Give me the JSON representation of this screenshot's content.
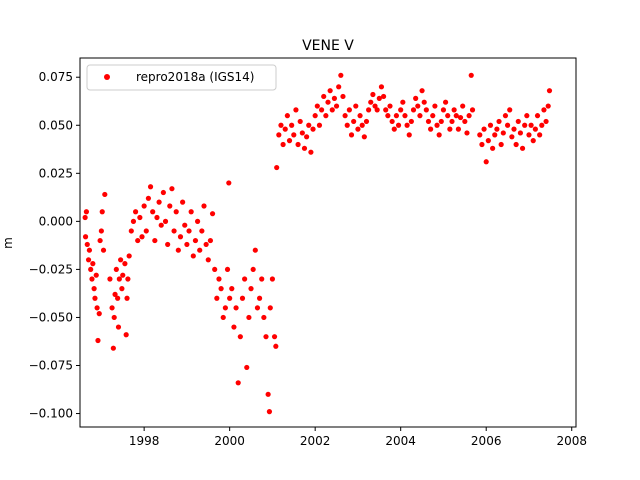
{
  "chart_data": {
    "type": "scatter",
    "title": "VENE V",
    "xlabel": "",
    "ylabel": "m",
    "xlim": [
      1996.5,
      2008.1
    ],
    "ylim": [
      -0.107,
      0.085
    ],
    "xticks": [
      1998,
      2000,
      2002,
      2004,
      2006,
      2008
    ],
    "xtick_labels": [
      "1998",
      "2000",
      "2002",
      "2004",
      "2006",
      "2008"
    ],
    "yticks": [
      -0.1,
      -0.075,
      -0.05,
      -0.025,
      0.0,
      0.025,
      0.05,
      0.075
    ],
    "ytick_labels": [
      "−0.100",
      "−0.075",
      "−0.050",
      "−0.025",
      "0.000",
      "0.025",
      "0.050",
      "0.075"
    ],
    "grid": false,
    "legend_position": "top-left",
    "series": [
      {
        "name": "repro2018a (IGS14)",
        "color": "#ff0000",
        "marker": "circle",
        "points": [
          [
            1996.62,
            0.002
          ],
          [
            1996.63,
            -0.008
          ],
          [
            1996.65,
            0.005
          ],
          [
            1996.67,
            -0.012
          ],
          [
            1996.7,
            -0.02
          ],
          [
            1996.72,
            -0.015
          ],
          [
            1996.75,
            -0.025
          ],
          [
            1996.78,
            -0.03
          ],
          [
            1996.8,
            -0.022
          ],
          [
            1996.83,
            -0.035
          ],
          [
            1996.85,
            -0.04
          ],
          [
            1996.88,
            -0.028
          ],
          [
            1996.9,
            -0.045
          ],
          [
            1996.92,
            -0.062
          ],
          [
            1996.95,
            -0.048
          ],
          [
            1996.97,
            -0.01
          ],
          [
            1997.0,
            -0.005
          ],
          [
            1997.02,
            0.005
          ],
          [
            1997.05,
            -0.015
          ],
          [
            1997.08,
            0.014
          ],
          [
            1997.2,
            -0.03
          ],
          [
            1997.25,
            -0.045
          ],
          [
            1997.28,
            -0.066
          ],
          [
            1997.3,
            -0.05
          ],
          [
            1997.32,
            -0.038
          ],
          [
            1997.35,
            -0.025
          ],
          [
            1997.38,
            -0.04
          ],
          [
            1997.4,
            -0.055
          ],
          [
            1997.42,
            -0.03
          ],
          [
            1997.45,
            -0.02
          ],
          [
            1997.48,
            -0.035
          ],
          [
            1997.5,
            -0.028
          ],
          [
            1997.55,
            -0.022
          ],
          [
            1997.58,
            -0.059
          ],
          [
            1997.6,
            -0.04
          ],
          [
            1997.62,
            -0.03
          ],
          [
            1997.65,
            -0.018
          ],
          [
            1997.7,
            -0.005
          ],
          [
            1997.75,
            0.0
          ],
          [
            1997.8,
            0.005
          ],
          [
            1997.85,
            -0.01
          ],
          [
            1997.9,
            0.002
          ],
          [
            1997.95,
            -0.008
          ],
          [
            1998.0,
            0.008
          ],
          [
            1998.05,
            -0.005
          ],
          [
            1998.1,
            0.012
          ],
          [
            1998.15,
            0.018
          ],
          [
            1998.2,
            0.005
          ],
          [
            1998.25,
            -0.01
          ],
          [
            1998.3,
            0.002
          ],
          [
            1998.35,
            0.01
          ],
          [
            1998.4,
            -0.002
          ],
          [
            1998.45,
            0.015
          ],
          [
            1998.5,
            0.0
          ],
          [
            1998.55,
            -0.012
          ],
          [
            1998.6,
            0.008
          ],
          [
            1998.65,
            0.017
          ],
          [
            1998.7,
            -0.005
          ],
          [
            1998.75,
            0.005
          ],
          [
            1998.8,
            -0.015
          ],
          [
            1998.85,
            -0.008
          ],
          [
            1998.9,
            0.01
          ],
          [
            1998.95,
            -0.002
          ],
          [
            1999.0,
            -0.012
          ],
          [
            1999.05,
            -0.005
          ],
          [
            1999.1,
            0.005
          ],
          [
            1999.15,
            -0.018
          ],
          [
            1999.2,
            -0.01
          ],
          [
            1999.25,
            0.0
          ],
          [
            1999.3,
            -0.015
          ],
          [
            1999.35,
            -0.005
          ],
          [
            1999.4,
            0.008
          ],
          [
            1999.45,
            -0.012
          ],
          [
            1999.5,
            -0.02
          ],
          [
            1999.55,
            -0.01
          ],
          [
            1999.6,
            0.004
          ],
          [
            1999.65,
            -0.025
          ],
          [
            1999.7,
            -0.04
          ],
          [
            1999.75,
            -0.03
          ],
          [
            1999.8,
            -0.035
          ],
          [
            1999.85,
            -0.05
          ],
          [
            1999.9,
            -0.045
          ],
          [
            1999.95,
            -0.025
          ],
          [
            1999.98,
            0.02
          ],
          [
            2000.0,
            -0.04
          ],
          [
            2000.05,
            -0.035
          ],
          [
            2000.1,
            -0.055
          ],
          [
            2000.15,
            -0.045
          ],
          [
            2000.2,
            -0.084
          ],
          [
            2000.25,
            -0.06
          ],
          [
            2000.3,
            -0.04
          ],
          [
            2000.35,
            -0.03
          ],
          [
            2000.4,
            -0.076
          ],
          [
            2000.45,
            -0.05
          ],
          [
            2000.5,
            -0.035
          ],
          [
            2000.55,
            -0.025
          ],
          [
            2000.6,
            -0.015
          ],
          [
            2000.65,
            -0.045
          ],
          [
            2000.7,
            -0.04
          ],
          [
            2000.75,
            -0.03
          ],
          [
            2000.8,
            -0.05
          ],
          [
            2000.85,
            -0.06
          ],
          [
            2000.9,
            -0.09
          ],
          [
            2000.93,
            -0.099
          ],
          [
            2000.95,
            -0.045
          ],
          [
            2001.0,
            -0.03
          ],
          [
            2001.05,
            -0.06
          ],
          [
            2001.08,
            -0.065
          ],
          [
            2001.1,
            0.028
          ],
          [
            2001.15,
            0.045
          ],
          [
            2001.2,
            0.05
          ],
          [
            2001.25,
            0.04
          ],
          [
            2001.3,
            0.048
          ],
          [
            2001.35,
            0.055
          ],
          [
            2001.4,
            0.042
          ],
          [
            2001.45,
            0.05
          ],
          [
            2001.5,
            0.045
          ],
          [
            2001.55,
            0.058
          ],
          [
            2001.6,
            0.04
          ],
          [
            2001.65,
            0.052
          ],
          [
            2001.7,
            0.046
          ],
          [
            2001.75,
            0.038
          ],
          [
            2001.8,
            0.044
          ],
          [
            2001.85,
            0.05
          ],
          [
            2001.9,
            0.036
          ],
          [
            2001.95,
            0.048
          ],
          [
            2002.0,
            0.055
          ],
          [
            2002.05,
            0.06
          ],
          [
            2002.1,
            0.05
          ],
          [
            2002.15,
            0.058
          ],
          [
            2002.2,
            0.065
          ],
          [
            2002.25,
            0.055
          ],
          [
            2002.3,
            0.062
          ],
          [
            2002.35,
            0.068
          ],
          [
            2002.4,
            0.058
          ],
          [
            2002.45,
            0.064
          ],
          [
            2002.5,
            0.06
          ],
          [
            2002.55,
            0.07
          ],
          [
            2002.6,
            0.076
          ],
          [
            2002.65,
            0.065
          ],
          [
            2002.7,
            0.055
          ],
          [
            2002.75,
            0.05
          ],
          [
            2002.8,
            0.058
          ],
          [
            2002.85,
            0.045
          ],
          [
            2002.9,
            0.052
          ],
          [
            2002.95,
            0.06
          ],
          [
            2003.0,
            0.048
          ],
          [
            2003.05,
            0.055
          ],
          [
            2003.1,
            0.05
          ],
          [
            2003.15,
            0.044
          ],
          [
            2003.2,
            0.052
          ],
          [
            2003.25,
            0.058
          ],
          [
            2003.3,
            0.062
          ],
          [
            2003.35,
            0.066
          ],
          [
            2003.4,
            0.06
          ],
          [
            2003.45,
            0.058
          ],
          [
            2003.5,
            0.064
          ],
          [
            2003.55,
            0.07
          ],
          [
            2003.6,
            0.065
          ],
          [
            2003.65,
            0.058
          ],
          [
            2003.7,
            0.055
          ],
          [
            2003.75,
            0.06
          ],
          [
            2003.8,
            0.052
          ],
          [
            2003.85,
            0.048
          ],
          [
            2003.9,
            0.055
          ],
          [
            2003.95,
            0.05
          ],
          [
            2004.0,
            0.058
          ],
          [
            2004.05,
            0.062
          ],
          [
            2004.1,
            0.055
          ],
          [
            2004.15,
            0.05
          ],
          [
            2004.2,
            0.045
          ],
          [
            2004.25,
            0.052
          ],
          [
            2004.3,
            0.058
          ],
          [
            2004.35,
            0.064
          ],
          [
            2004.4,
            0.06
          ],
          [
            2004.45,
            0.055
          ],
          [
            2004.5,
            0.068
          ],
          [
            2004.55,
            0.062
          ],
          [
            2004.6,
            0.058
          ],
          [
            2004.65,
            0.052
          ],
          [
            2004.7,
            0.048
          ],
          [
            2004.75,
            0.055
          ],
          [
            2004.8,
            0.06
          ],
          [
            2004.85,
            0.05
          ],
          [
            2004.9,
            0.045
          ],
          [
            2004.95,
            0.052
          ],
          [
            2005.0,
            0.058
          ],
          [
            2005.05,
            0.062
          ],
          [
            2005.1,
            0.055
          ],
          [
            2005.15,
            0.048
          ],
          [
            2005.2,
            0.052
          ],
          [
            2005.25,
            0.058
          ],
          [
            2005.3,
            0.055
          ],
          [
            2005.35,
            0.048
          ],
          [
            2005.4,
            0.054
          ],
          [
            2005.45,
            0.06
          ],
          [
            2005.5,
            0.052
          ],
          [
            2005.55,
            0.046
          ],
          [
            2005.6,
            0.055
          ],
          [
            2005.65,
            0.076
          ],
          [
            2005.68,
            0.058
          ],
          [
            2005.85,
            0.045
          ],
          [
            2005.9,
            0.04
          ],
          [
            2005.95,
            0.048
          ],
          [
            2006.0,
            0.031
          ],
          [
            2006.05,
            0.042
          ],
          [
            2006.1,
            0.05
          ],
          [
            2006.15,
            0.038
          ],
          [
            2006.2,
            0.045
          ],
          [
            2006.25,
            0.048
          ],
          [
            2006.3,
            0.052
          ],
          [
            2006.35,
            0.04
          ],
          [
            2006.4,
            0.046
          ],
          [
            2006.45,
            0.055
          ],
          [
            2006.5,
            0.05
          ],
          [
            2006.55,
            0.058
          ],
          [
            2006.6,
            0.044
          ],
          [
            2006.65,
            0.048
          ],
          [
            2006.7,
            0.04
          ],
          [
            2006.75,
            0.052
          ],
          [
            2006.8,
            0.046
          ],
          [
            2006.85,
            0.038
          ],
          [
            2006.9,
            0.05
          ],
          [
            2006.95,
            0.055
          ],
          [
            2007.0,
            0.045
          ],
          [
            2007.05,
            0.05
          ],
          [
            2007.1,
            0.042
          ],
          [
            2007.15,
            0.048
          ],
          [
            2007.2,
            0.055
          ],
          [
            2007.25,
            0.045
          ],
          [
            2007.3,
            0.05
          ],
          [
            2007.35,
            0.058
          ],
          [
            2007.4,
            0.052
          ],
          [
            2007.45,
            0.06
          ],
          [
            2007.48,
            0.068
          ]
        ]
      }
    ]
  }
}
